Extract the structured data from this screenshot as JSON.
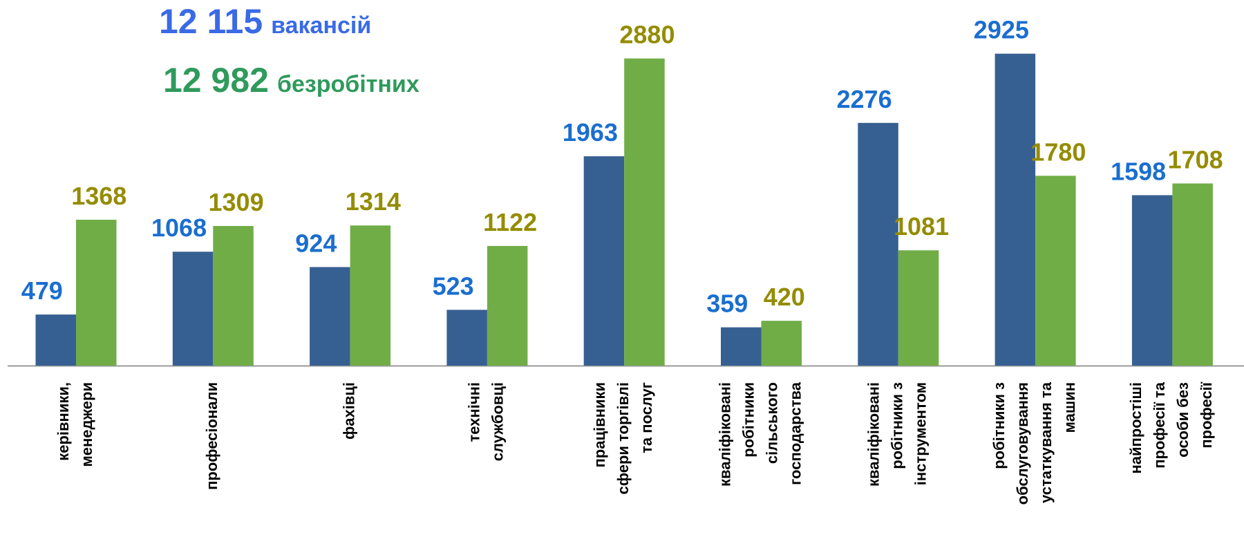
{
  "chart_data": {
    "type": "bar",
    "categories": [
      [
        "керівники,",
        "менеджери"
      ],
      [
        "професіонали"
      ],
      [
        "фахівці"
      ],
      [
        "технічні",
        "службовці"
      ],
      [
        "працівники",
        "сфери торгівлі",
        "та послуг"
      ],
      [
        "кваліфіковані",
        "робітники",
        "сільського",
        "господарства"
      ],
      [
        "кваліфіковані",
        "робітники з",
        "інструментом"
      ],
      [
        "робітники з",
        "обслуговування",
        "устаткування та",
        "машин"
      ],
      [
        "найпростіші",
        "професії та",
        "особи без",
        "професії"
      ]
    ],
    "series": [
      {
        "name": "вакансій",
        "total": {
          "value": 12115,
          "label": "12 115"
        },
        "color": "#376092",
        "label_color": "#1a6ecf",
        "title_color": "#3a6ae6",
        "values": [
          479,
          1068,
          924,
          523,
          1963,
          359,
          2276,
          2925,
          1598
        ]
      },
      {
        "name": "безробітних",
        "total": {
          "value": 12982,
          "label": "12 982"
        },
        "color": "#70ad47",
        "label_color": "#948c00",
        "title_color": "#2f9a5c",
        "values": [
          1368,
          1309,
          1314,
          1122,
          2880,
          420,
          1081,
          1780,
          1708
        ]
      }
    ]
  }
}
